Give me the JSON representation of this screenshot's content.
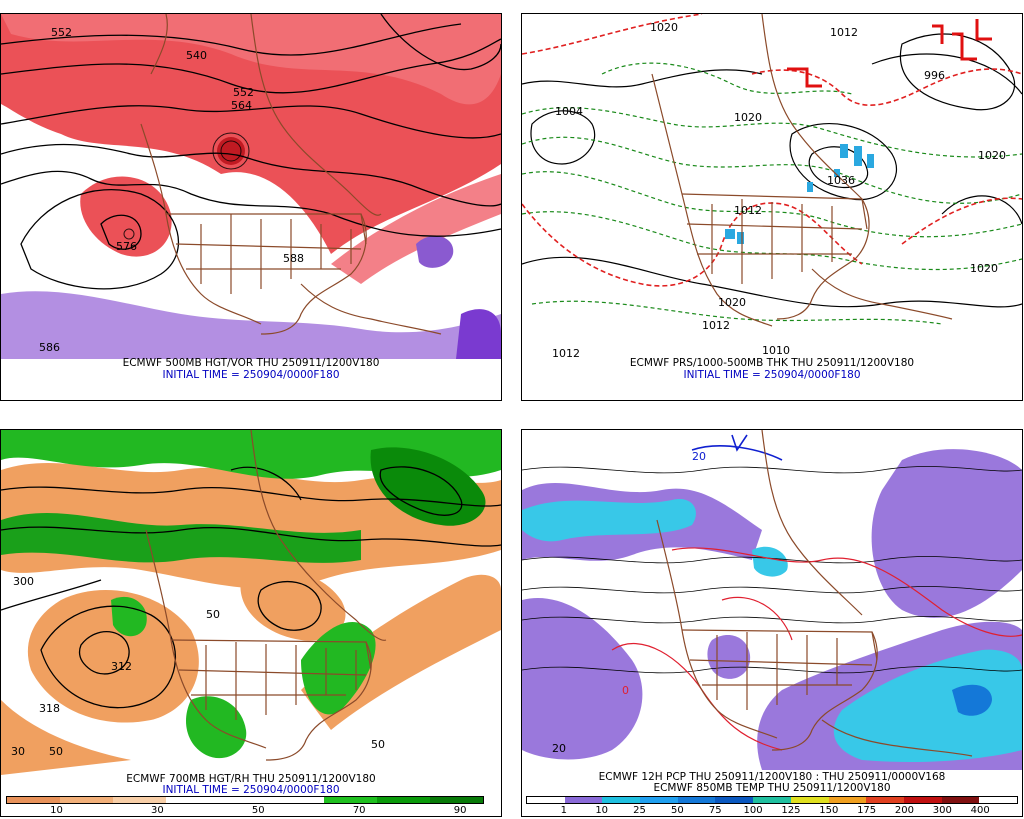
{
  "panels": [
    {
      "id": "p1",
      "caption": "ECMWF 500MB HGT/VOR THU 250911/1200V180",
      "init": "INITIAL TIME = 250904/0000F180",
      "contour_labels": [
        "552",
        "540",
        "552",
        "564",
        "576",
        "588",
        "586"
      ]
    },
    {
      "id": "p2",
      "caption": "ECMWF PRS/1000-500MB THK THU 250911/1200V180",
      "init": "INITIAL TIME = 250904/0000F180",
      "contour_labels": [
        "1020",
        "1004",
        "1012",
        "1020",
        "1012",
        "1036",
        "1020",
        "1020",
        "1020",
        "1012",
        "1010",
        "1012",
        "996"
      ]
    },
    {
      "id": "p3",
      "caption": "ECMWF 700MB HGT/RH THU 250911/1200V180",
      "init": "INITIAL TIME = 250904/0000F180",
      "contour_labels": [
        "312",
        "318",
        "300",
        "50",
        "50",
        "30",
        "50"
      ],
      "colorbar": {
        "colors": [
          "#e8925a",
          "#f2b07a",
          "#f8cfa8",
          "#ffffff",
          "#ffffff",
          "#ffffff",
          "#1fc01f",
          "#0a9a0a",
          "#087a08"
        ],
        "ticks": [
          "10",
          "30",
          "50",
          "70",
          "90"
        ]
      }
    },
    {
      "id": "p4",
      "caption": "ECMWF 12H PCP THU 250911/1200V180 : THU 250911/0000V168",
      "caption2": "ECMWF 850MB TEMP THU 250911/1200V180",
      "contour_labels": [
        "0",
        "20",
        "20"
      ],
      "colorbar": {
        "colors": [
          "#ffffff",
          "#8a6ad8",
          "#20c0e0",
          "#20a0f0",
          "#1478d8",
          "#0a58c0",
          "#20c0a0",
          "#e0e020",
          "#f0a020",
          "#e04020",
          "#c01010",
          "#801010",
          "#ffffff"
        ],
        "ticks": [
          "1",
          "10",
          "25",
          "50",
          "75",
          "100",
          "125",
          "150",
          "175",
          "200",
          "300",
          "400"
        ]
      }
    }
  ]
}
